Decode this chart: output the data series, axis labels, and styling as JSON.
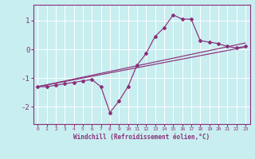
{
  "xlabel": "Windchill (Refroidissement éolien,°C)",
  "bg_color": "#c8eef0",
  "line_color": "#8b2f7a",
  "grid_color": "#ffffff",
  "xlim": [
    -0.5,
    23.5
  ],
  "ylim": [
    -2.6,
    1.55
  ],
  "yticks": [
    1,
    0,
    -1,
    -2
  ],
  "xticks": [
    0,
    1,
    2,
    3,
    4,
    5,
    6,
    7,
    8,
    9,
    10,
    11,
    12,
    13,
    14,
    15,
    16,
    17,
    18,
    19,
    20,
    21,
    22,
    23
  ],
  "series1_x": [
    0,
    1,
    2,
    3,
    4,
    5,
    6,
    7,
    8,
    9,
    10,
    11,
    12,
    13,
    14,
    15,
    16,
    17,
    18,
    19,
    20,
    21,
    22,
    23
  ],
  "series1_y": [
    -1.3,
    -1.3,
    -1.25,
    -1.2,
    -1.15,
    -1.1,
    -1.05,
    -1.3,
    -2.2,
    -1.8,
    -1.3,
    -0.55,
    -0.15,
    0.45,
    0.75,
    1.2,
    1.05,
    1.05,
    0.3,
    0.25,
    0.2,
    0.1,
    0.05,
    0.1
  ],
  "reg_line1": [
    -1.3,
    0.08
  ],
  "reg_line2": [
    -1.3,
    0.22
  ]
}
